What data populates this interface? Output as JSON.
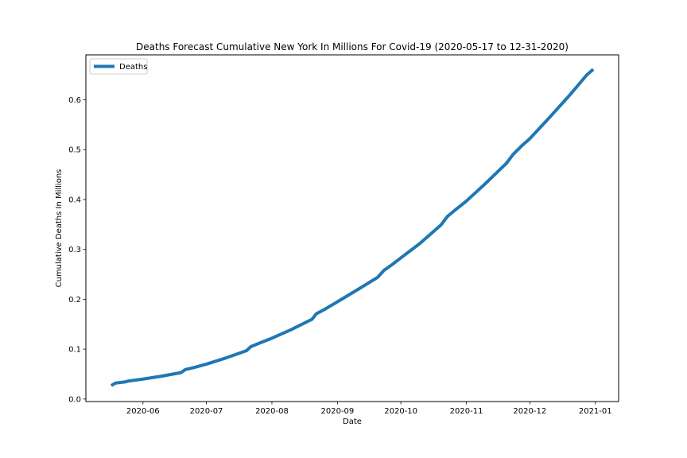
{
  "chart_data": {
    "type": "line",
    "title": "Deaths Forecast Cumulative New York In Millions For Covid-19 (2020-05-17 to 12-31-2020)",
    "xlabel": "Date",
    "ylabel": "Cumulative Deaths In Millions",
    "x_tick_labels": [
      "2020-06",
      "2020-07",
      "2020-08",
      "2020-09",
      "2020-10",
      "2020-11",
      "2020-12",
      "2021-01"
    ],
    "x_tick_dates": [
      "2020-06-01",
      "2020-07-01",
      "2020-08-01",
      "2020-09-01",
      "2020-10-01",
      "2020-11-01",
      "2020-12-01",
      "2021-01-01"
    ],
    "y_ticks": [
      0.0,
      0.1,
      0.2,
      0.3,
      0.4,
      0.5,
      0.6
    ],
    "y_tick_labels": [
      "0.0",
      "0.1",
      "0.2",
      "0.3",
      "0.4",
      "0.5",
      "0.6"
    ],
    "xlim": [
      "2020-05-05",
      "2021-01-12"
    ],
    "ylim": [
      -0.005,
      0.69
    ],
    "grid": false,
    "legend_position": "upper left",
    "series": [
      {
        "name": "Deaths",
        "color": "#1f77b4",
        "points": [
          {
            "x": "2020-05-17",
            "y": 0.027
          },
          {
            "x": "2020-05-19",
            "y": 0.032
          },
          {
            "x": "2020-05-23",
            "y": 0.034
          },
          {
            "x": "2020-05-25",
            "y": 0.036
          },
          {
            "x": "2020-06-01",
            "y": 0.04
          },
          {
            "x": "2020-06-10",
            "y": 0.046
          },
          {
            "x": "2020-06-19",
            "y": 0.053
          },
          {
            "x": "2020-06-21",
            "y": 0.059
          },
          {
            "x": "2020-06-25",
            "y": 0.063
          },
          {
            "x": "2020-07-01",
            "y": 0.07
          },
          {
            "x": "2020-07-10",
            "y": 0.082
          },
          {
            "x": "2020-07-20",
            "y": 0.097
          },
          {
            "x": "2020-07-22",
            "y": 0.105
          },
          {
            "x": "2020-07-26",
            "y": 0.112
          },
          {
            "x": "2020-08-01",
            "y": 0.122
          },
          {
            "x": "2020-08-10",
            "y": 0.139
          },
          {
            "x": "2020-08-20",
            "y": 0.16
          },
          {
            "x": "2020-08-22",
            "y": 0.171
          },
          {
            "x": "2020-08-26",
            "y": 0.18
          },
          {
            "x": "2020-09-01",
            "y": 0.195
          },
          {
            "x": "2020-09-10",
            "y": 0.218
          },
          {
            "x": "2020-09-20",
            "y": 0.244
          },
          {
            "x": "2020-09-23",
            "y": 0.258
          },
          {
            "x": "2020-09-27",
            "y": 0.27
          },
          {
            "x": "2020-10-01",
            "y": 0.283
          },
          {
            "x": "2020-10-10",
            "y": 0.312
          },
          {
            "x": "2020-10-20",
            "y": 0.349
          },
          {
            "x": "2020-10-23",
            "y": 0.366
          },
          {
            "x": "2020-10-27",
            "y": 0.38
          },
          {
            "x": "2020-11-01",
            "y": 0.397
          },
          {
            "x": "2020-11-10",
            "y": 0.432
          },
          {
            "x": "2020-11-20",
            "y": 0.473
          },
          {
            "x": "2020-11-23",
            "y": 0.49
          },
          {
            "x": "2020-11-27",
            "y": 0.507
          },
          {
            "x": "2020-12-01",
            "y": 0.522
          },
          {
            "x": "2020-12-10",
            "y": 0.563
          },
          {
            "x": "2020-12-20",
            "y": 0.61
          },
          {
            "x": "2020-12-25",
            "y": 0.635
          },
          {
            "x": "2020-12-28",
            "y": 0.65
          },
          {
            "x": "2020-12-31",
            "y": 0.661
          }
        ]
      }
    ]
  }
}
